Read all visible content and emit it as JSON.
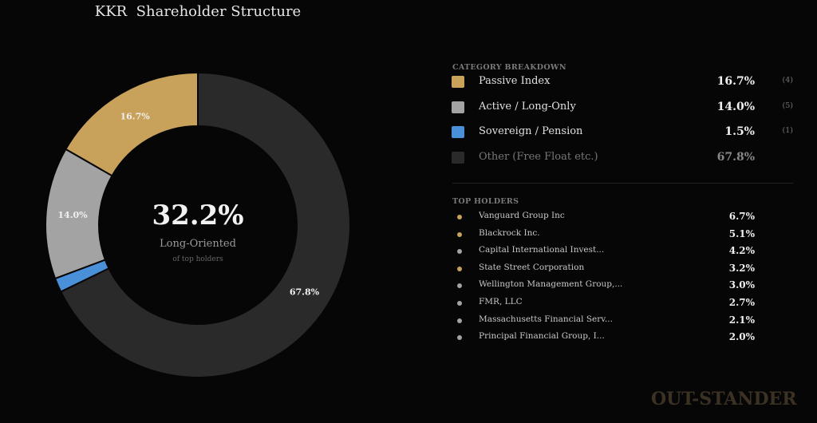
{
  "title": "KKR  Shareholder Structure",
  "center": {
    "value": "32.2%",
    "label": "Long-Oriented",
    "sublabel": "of top holders"
  },
  "chart_data": {
    "type": "pie",
    "title": "KKR  Shareholder Structure",
    "donut": true,
    "slices": [
      {
        "name": "Other (Free Float etc.)",
        "value": 67.8,
        "label": "67.8%",
        "color": "#2a2a2a"
      },
      {
        "name": "Sovereign / Pension",
        "value": 1.5,
        "label": "",
        "color": "#4a90d9"
      },
      {
        "name": "Active / Long-Only",
        "value": 14.0,
        "label": "14.0%",
        "color": "#a3a3a3"
      },
      {
        "name": "Passive Index",
        "value": 16.7,
        "label": "16.7%",
        "color": "#c8a25a"
      }
    ]
  },
  "breakdown": {
    "heading": "CATEGORY BREAKDOWN",
    "items": [
      {
        "name": "Passive Index",
        "pct": "16.7%",
        "count": "(4)",
        "color": "#c8a25a"
      },
      {
        "name": "Active / Long-Only",
        "pct": "14.0%",
        "count": "(5)",
        "color": "#a3a3a3"
      },
      {
        "name": "Sovereign / Pension",
        "pct": "1.5%",
        "count": "(1)",
        "color": "#4a90d9"
      },
      {
        "name": "Other (Free Float etc.)",
        "pct": "67.8%",
        "count": "",
        "color": "#2a2a2a"
      }
    ]
  },
  "holders": {
    "heading": "TOP HOLDERS",
    "items": [
      {
        "name": "Vanguard Group Inc",
        "pct": "6.7%",
        "color": "#c8a25a"
      },
      {
        "name": "Blackrock Inc.",
        "pct": "5.1%",
        "color": "#c8a25a"
      },
      {
        "name": "Capital International Invest...",
        "pct": "4.2%",
        "color": "#a3a3a3"
      },
      {
        "name": "State Street Corporation",
        "pct": "3.2%",
        "color": "#c8a25a"
      },
      {
        "name": "Wellington Management Group,...",
        "pct": "3.0%",
        "color": "#a3a3a3"
      },
      {
        "name": "FMR, LLC",
        "pct": "2.7%",
        "color": "#a3a3a3"
      },
      {
        "name": "Massachusetts Financial Serv...",
        "pct": "2.1%",
        "color": "#a3a3a3"
      },
      {
        "name": "Principal Financial Group, I...",
        "pct": "2.0%",
        "color": "#a3a3a3"
      }
    ]
  },
  "watermark": "OUT-STANDER"
}
